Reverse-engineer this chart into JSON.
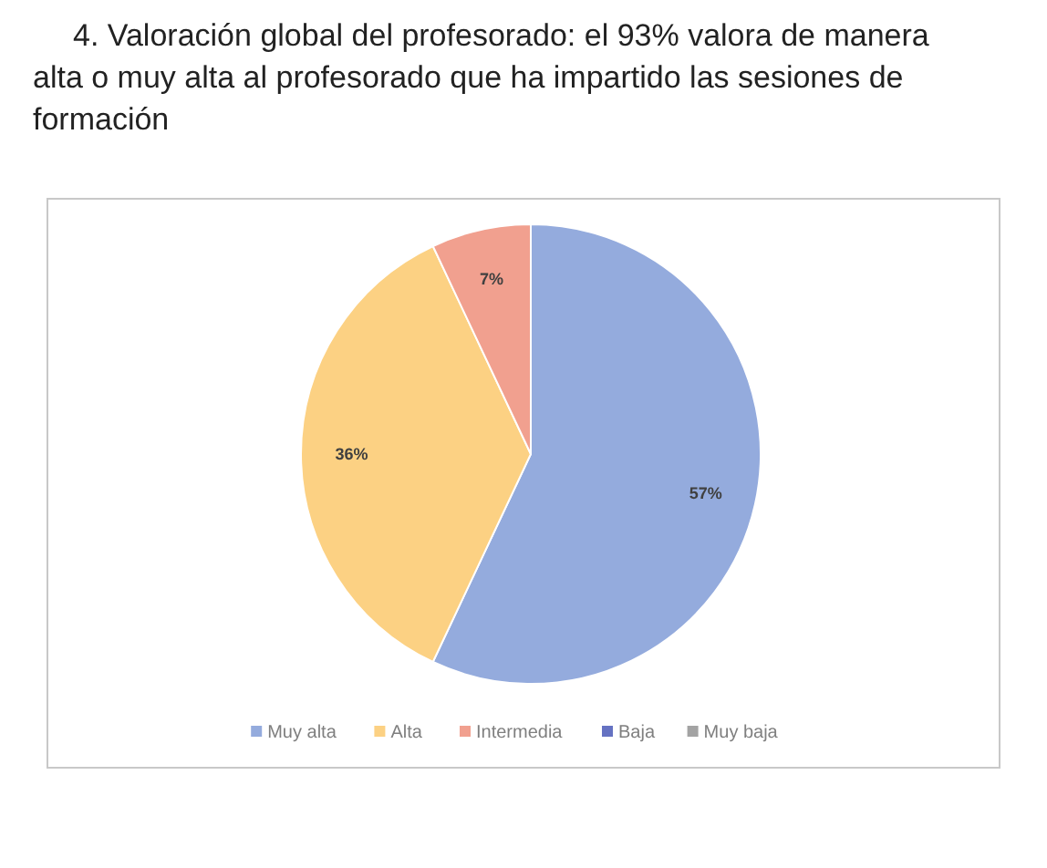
{
  "chart_data": {
    "type": "pie",
    "title": "4. Valoración global del profesorado: el 93% valora de manera alta o muy alta al profesorado que ha impartido las sesiones de formación",
    "categories": [
      "Muy alta",
      "Alta",
      "Intermedia",
      "Baja",
      "Muy baja"
    ],
    "values": [
      57,
      36,
      7,
      0,
      0
    ],
    "colors": [
      "#94abdd",
      "#fcd183",
      "#f1a08f",
      "#6572c2",
      "#a3a3a3"
    ],
    "value_labels": [
      "57%",
      "36%",
      "7%",
      null,
      null
    ],
    "legend": "bottom"
  }
}
